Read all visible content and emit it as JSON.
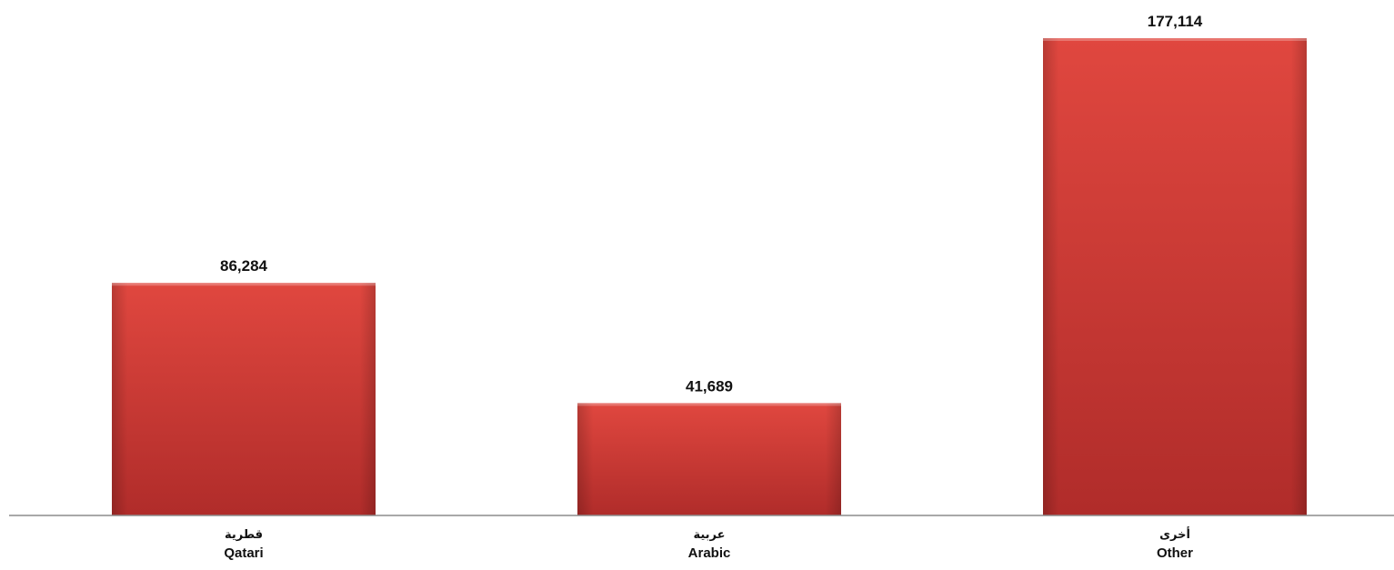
{
  "chart_data": {
    "type": "bar",
    "categories": [
      {
        "ar": "قطرية",
        "en": "Qatari"
      },
      {
        "ar": "عربية",
        "en": "Arabic"
      },
      {
        "ar": "أخرى",
        "en": "Other"
      }
    ],
    "values": [
      86284,
      41689,
      177114
    ],
    "value_labels": [
      "86,284",
      "41,689",
      "177,114"
    ],
    "title": "",
    "xlabel": "",
    "ylabel": "",
    "ylim": [
      0,
      177114
    ],
    "grid": false,
    "legend": "none",
    "colors": {
      "bar_light": "#e0473f",
      "bar_dark": "#b02c2a",
      "axis": "#8c8c8c"
    }
  }
}
